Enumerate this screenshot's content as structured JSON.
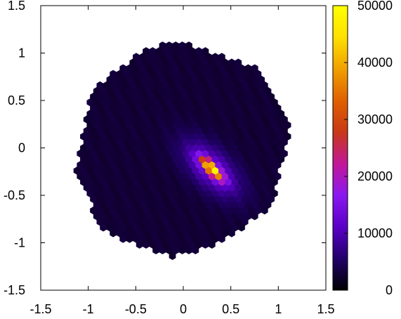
{
  "chart_data": {
    "type": "heatmap",
    "title": "",
    "xlabel": "",
    "ylabel": "",
    "xlim": [
      -1.5,
      1.5
    ],
    "ylim": [
      -1.5,
      1.5
    ],
    "x_ticks": [
      "-1.5",
      "-1",
      "-0.5",
      "0",
      "0.5",
      "1",
      "1.5"
    ],
    "x_tick_values": [
      -1.5,
      -1,
      -0.5,
      0,
      0.5,
      1,
      1.5
    ],
    "y_ticks": [
      "-1.5",
      "-1",
      "-0.5",
      "0",
      "0.5",
      "1",
      "1.5"
    ],
    "y_tick_values": [
      -1.5,
      -1,
      -0.5,
      0,
      0.5,
      1,
      1.5
    ],
    "grid": false,
    "bin_shape": "hexagon",
    "hex_boundary": [
      [
        -0.1,
        1.13
      ],
      [
        0.8,
        0.85
      ],
      [
        1.13,
        0.25
      ],
      [
        0.95,
        -0.62
      ],
      [
        0.3,
        -1.05
      ],
      [
        -0.15,
        -1.15
      ],
      [
        -0.85,
        -0.88
      ],
      [
        -1.13,
        -0.25
      ],
      [
        -0.95,
        0.63
      ],
      [
        -0.4,
        1.05
      ]
    ],
    "background_count": 2800,
    "hotspot": {
      "center": [
        0.3,
        -0.22
      ],
      "major_axis_direction": [
        0.71,
        -0.7
      ],
      "peak_count": 50000
    },
    "colorbar": {
      "min": 0,
      "max": 50000,
      "ticks": [
        "50000",
        "40000",
        "30000",
        "20000",
        "10000",
        "0"
      ],
      "tick_values": [
        50000,
        40000,
        30000,
        20000,
        10000,
        0
      ],
      "colormap": [
        "#000000",
        "#22006a",
        "#5a00c8",
        "#8a18f0",
        "#c21898",
        "#c83818",
        "#e06000",
        "#f0a000",
        "#ffe000",
        "#ffff00"
      ]
    }
  }
}
